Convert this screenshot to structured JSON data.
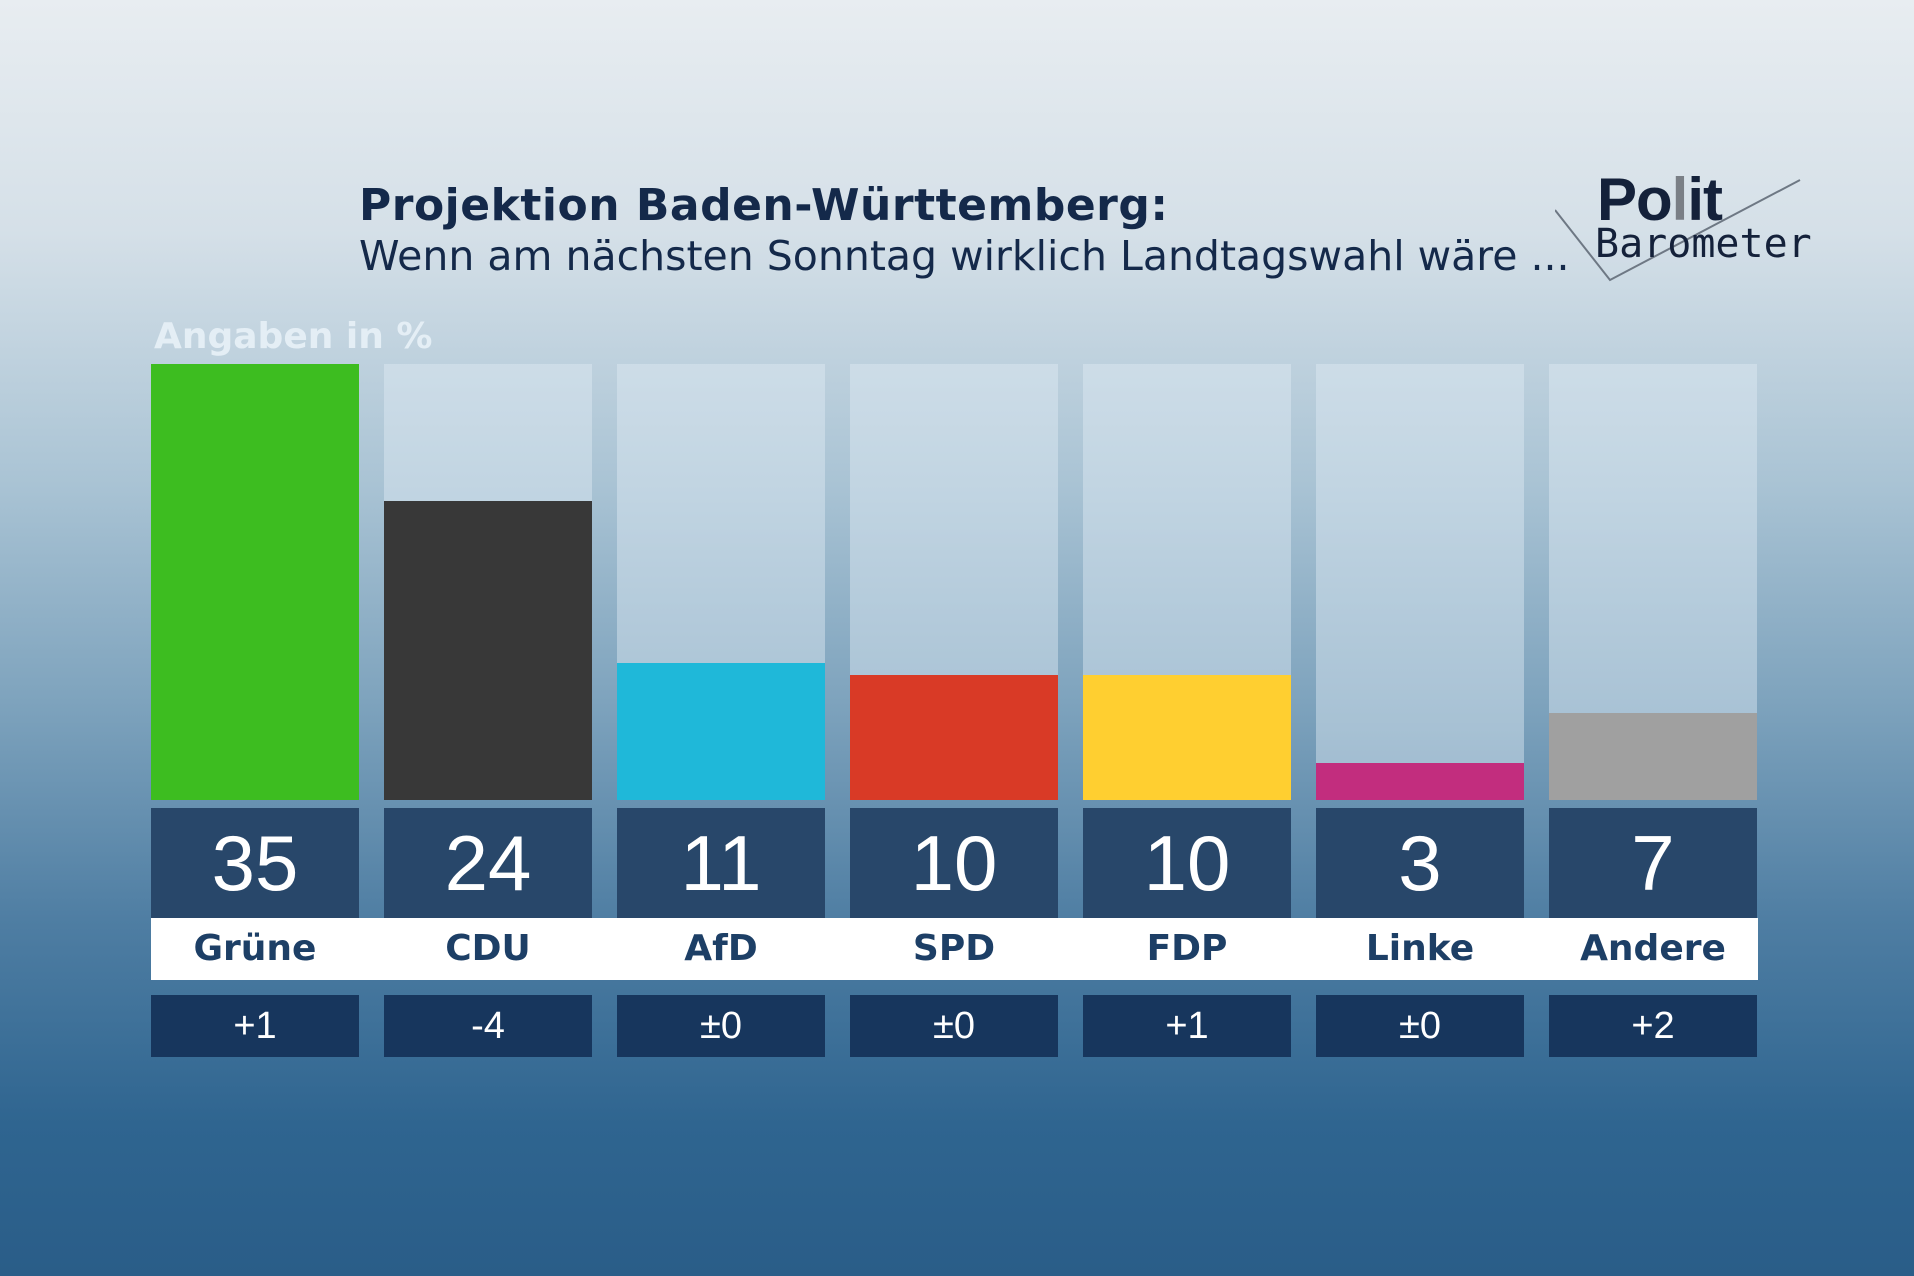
{
  "header": {
    "title": "Projektion Baden-Württemberg:",
    "subtitle": "Wenn am nächsten Sonntag  wirklich Landtagswahl wäre ..."
  },
  "logo": {
    "line1_a": "Po",
    "line1_b": "l",
    "line1_c": "it",
    "line2": "Barometer"
  },
  "chart_data": {
    "type": "bar",
    "title": "Projektion Baden-Württemberg: Wenn am nächsten Sonntag wirklich Landtagswahl wäre ...",
    "ylabel": "Angaben in %",
    "ylim": [
      0,
      35
    ],
    "categories": [
      "Grüne",
      "CDU",
      "AfD",
      "SPD",
      "FDP",
      "Linke",
      "Andere"
    ],
    "values": [
      35,
      24,
      11,
      10,
      10,
      3,
      7
    ],
    "value_labels": [
      "35",
      "24",
      "11",
      "10",
      "10",
      "3",
      "7"
    ],
    "changes": [
      "+1",
      "-4",
      "±0",
      "±0",
      "+1",
      "±0",
      "+2"
    ],
    "colors": [
      "#3dbd20",
      "#383838",
      "#1fb8d9",
      "#d93a26",
      "#ffcf30",
      "#c22d7e",
      "#a0a0a0"
    ]
  }
}
